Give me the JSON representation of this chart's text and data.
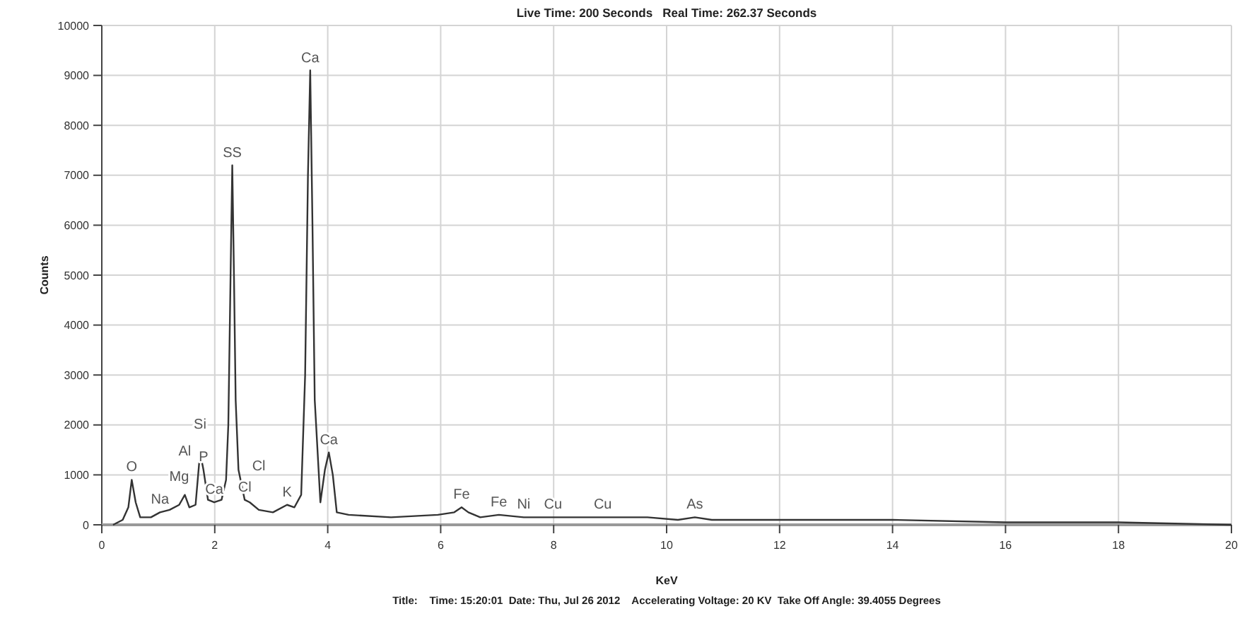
{
  "chart_data": {
    "type": "line",
    "title": "Live Time: 200 Seconds   Real Time: 262.37 Seconds",
    "xlabel": "KeV",
    "ylabel": "Counts",
    "xlim": [
      0,
      20
    ],
    "xticks": [
      0,
      2,
      4,
      6,
      8,
      10,
      12,
      14,
      16,
      18,
      20
    ],
    "ylim": [
      0,
      10000
    ],
    "yticks": [
      0,
      1000,
      2000,
      3000,
      4000,
      5000,
      6000,
      7000,
      8000,
      9000,
      10000
    ],
    "grid": true,
    "marker": "none",
    "line_style": "solid",
    "series": [
      {
        "color": "#333333",
        "x": [
          0.2,
          0.37,
          0.47,
          0.53,
          0.6,
          0.68,
          0.87,
          1.03,
          1.2,
          1.37,
          1.47,
          1.55,
          1.66,
          1.74,
          1.8,
          1.88,
          1.99,
          2.12,
          2.2,
          2.24,
          2.28,
          2.31,
          2.34,
          2.37,
          2.42,
          2.53,
          2.62,
          2.78,
          3.03,
          3.28,
          3.41,
          3.53,
          3.6,
          3.65,
          3.69,
          3.73,
          3.77,
          3.87,
          3.95,
          4.02,
          4.09,
          4.16,
          4.37,
          5.12,
          5.95,
          6.24,
          6.37,
          6.49,
          6.7,
          7.03,
          7.47,
          7.62,
          7.99,
          8.87,
          9.66,
          10.2,
          10.5,
          10.8,
          12,
          14,
          16,
          18,
          20
        ],
        "values": [
          0,
          100,
          350,
          900,
          450,
          150,
          150,
          250,
          300,
          400,
          600,
          350,
          400,
          1450,
          1100,
          500,
          450,
          500,
          900,
          2000,
          5000,
          7200,
          5000,
          2500,
          1100,
          500,
          450,
          300,
          250,
          400,
          350,
          600,
          3000,
          7000,
          9100,
          6000,
          2500,
          450,
          1100,
          1450,
          1000,
          250,
          200,
          150,
          200,
          250,
          350,
          250,
          150,
          200,
          150,
          150,
          150,
          150,
          150,
          100,
          150,
          100,
          100,
          100,
          50,
          50,
          0
        ]
      }
    ],
    "annotations": [
      {
        "text": "O",
        "x": 0.53,
        "y": 900
      },
      {
        "text": "Na",
        "x": 1.03,
        "y": 250
      },
      {
        "text": "Mg",
        "x": 1.37,
        "y": 400
      },
      {
        "text": "Al",
        "x": 1.47,
        "y": 600
      },
      {
        "text": "Si",
        "x": 1.74,
        "y": 1450
      },
      {
        "text": "P",
        "x": 1.8,
        "y": 1100
      },
      {
        "text": "Ca",
        "x": 1.99,
        "y": 450
      },
      {
        "text": "SS",
        "x": 2.31,
        "y": 7200
      },
      {
        "text": "Cl",
        "x": 2.53,
        "y": 500
      },
      {
        "text": "Cl",
        "x": 2.78,
        "y": 300
      },
      {
        "text": "K",
        "x": 3.28,
        "y": 400
      },
      {
        "text": "Ca",
        "x": 3.69,
        "y": 9100
      },
      {
        "text": "Ca",
        "x": 4.02,
        "y": 1450
      },
      {
        "text": "Fe",
        "x": 6.37,
        "y": 350
      },
      {
        "text": "Fe",
        "x": 7.03,
        "y": 200
      },
      {
        "text": "Ni",
        "x": 7.47,
        "y": 150
      },
      {
        "text": "Cu",
        "x": 7.99,
        "y": 150
      },
      {
        "text": "Cu",
        "x": 8.87,
        "y": 150
      },
      {
        "text": "As",
        "x": 10.5,
        "y": 150
      },
      "Title:    Time: 15:20:01  Date: Thu, Jul 26 2012    Accelerating Voltage: 20 KV  Take Off Angle: 39.4055 Degrees"
    ]
  }
}
